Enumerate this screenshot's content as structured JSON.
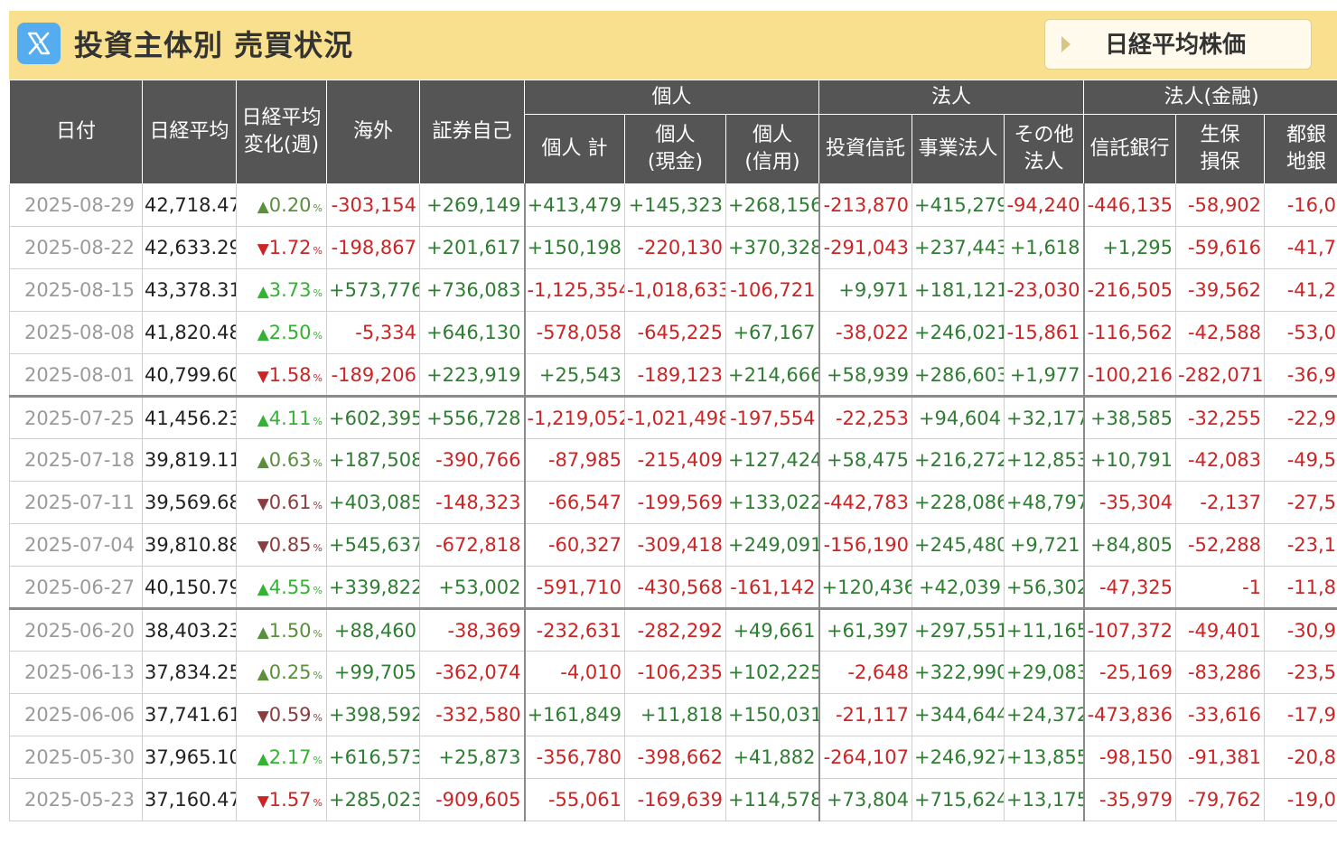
{
  "header": {
    "title": "投資主体別 売買状況",
    "nikkei_button": "日経平均株価",
    "background": "#f9e08f"
  },
  "columns": {
    "date": "日付",
    "nikkei": "日経平均",
    "change_line1": "日経平均",
    "change_line2": "変化(週)",
    "foreign": "海外",
    "proprietary": "証券自己",
    "group_individual": "個人",
    "group_corporate": "法人",
    "group_financial": "法人(金融)",
    "ind_total": "個人 計",
    "ind_cash_l1": "個人",
    "ind_cash_l2": "(現金)",
    "ind_margin_l1": "個人",
    "ind_margin_l2": "(信用)",
    "inv_trust": "投資信託",
    "business": "事業法人",
    "other_l1": "その他",
    "other_l2": "法人",
    "trust_bank": "信託銀行",
    "insurance_l1": "生保",
    "insurance_l2": "損保",
    "city_bank_l1": "都銀",
    "city_bank_l2": "地銀"
  },
  "colors": {
    "positive": "#2e7d32",
    "negative": "#cc2424",
    "header_bg": "#555555",
    "up_strong": "#33b233",
    "down_strong": "#cc2424"
  },
  "rows": [
    {
      "date": "2025-08-29",
      "nikkei": "42,718.47",
      "dir": "up",
      "chg": "0.20",
      "strong": false,
      "foreign": "-303,154",
      "prop": "+269,149",
      "ind_total": "+413,479",
      "ind_cash": "+145,323",
      "ind_margin": "+268,156",
      "inv_trust": "-213,870",
      "business": "+415,279",
      "other": "-94,240",
      "trust_bank": "-446,135",
      "insurance": "-58,902",
      "city_bank": "-16,0"
    },
    {
      "date": "2025-08-22",
      "nikkei": "42,633.29",
      "dir": "down",
      "chg": "1.72",
      "strong": true,
      "foreign": "-198,867",
      "prop": "+201,617",
      "ind_total": "+150,198",
      "ind_cash": "-220,130",
      "ind_margin": "+370,328",
      "inv_trust": "-291,043",
      "business": "+237,443",
      "other": "+1,618",
      "trust_bank": "+1,295",
      "insurance": "-59,616",
      "city_bank": "-41,7"
    },
    {
      "date": "2025-08-15",
      "nikkei": "43,378.31",
      "dir": "up",
      "chg": "3.73",
      "strong": true,
      "foreign": "+573,776",
      "prop": "+736,083",
      "ind_total": "-1,125,354",
      "ind_cash": "-1,018,633",
      "ind_margin": "-106,721",
      "inv_trust": "+9,971",
      "business": "+181,121",
      "other": "-23,030",
      "trust_bank": "-216,505",
      "insurance": "-39,562",
      "city_bank": "-41,2"
    },
    {
      "date": "2025-08-08",
      "nikkei": "41,820.48",
      "dir": "up",
      "chg": "2.50",
      "strong": true,
      "foreign": "-5,334",
      "prop": "+646,130",
      "ind_total": "-578,058",
      "ind_cash": "-645,225",
      "ind_margin": "+67,167",
      "inv_trust": "-38,022",
      "business": "+246,021",
      "other": "-15,861",
      "trust_bank": "-116,562",
      "insurance": "-42,588",
      "city_bank": "-53,0"
    },
    {
      "date": "2025-08-01",
      "nikkei": "40,799.60",
      "dir": "down",
      "chg": "1.58",
      "strong": true,
      "foreign": "-189,206",
      "prop": "+223,919",
      "ind_total": "+25,543",
      "ind_cash": "-189,123",
      "ind_margin": "+214,666",
      "inv_trust": "+58,939",
      "business": "+286,603",
      "other": "+1,977",
      "trust_bank": "-100,216",
      "insurance": "-282,071",
      "city_bank": "-36,9"
    },
    {
      "date": "2025-07-25",
      "nikkei": "41,456.23",
      "dir": "up",
      "chg": "4.11",
      "strong": true,
      "foreign": "+602,395",
      "prop": "+556,728",
      "ind_total": "-1,219,052",
      "ind_cash": "-1,021,498",
      "ind_margin": "-197,554",
      "inv_trust": "-22,253",
      "business": "+94,604",
      "other": "+32,177",
      "trust_bank": "+38,585",
      "insurance": "-32,255",
      "city_bank": "-22,9"
    },
    {
      "date": "2025-07-18",
      "nikkei": "39,819.11",
      "dir": "up",
      "chg": "0.63",
      "strong": false,
      "foreign": "+187,508",
      "prop": "-390,766",
      "ind_total": "-87,985",
      "ind_cash": "-215,409",
      "ind_margin": "+127,424",
      "inv_trust": "+58,475",
      "business": "+216,272",
      "other": "+12,853",
      "trust_bank": "+10,791",
      "insurance": "-42,083",
      "city_bank": "-49,5"
    },
    {
      "date": "2025-07-11",
      "nikkei": "39,569.68",
      "dir": "down",
      "chg": "0.61",
      "strong": false,
      "foreign": "+403,085",
      "prop": "-148,323",
      "ind_total": "-66,547",
      "ind_cash": "-199,569",
      "ind_margin": "+133,022",
      "inv_trust": "-442,783",
      "business": "+228,086",
      "other": "+48,797",
      "trust_bank": "-35,304",
      "insurance": "-2,137",
      "city_bank": "-27,5"
    },
    {
      "date": "2025-07-04",
      "nikkei": "39,810.88",
      "dir": "down",
      "chg": "0.85",
      "strong": false,
      "foreign": "+545,637",
      "prop": "-672,818",
      "ind_total": "-60,327",
      "ind_cash": "-309,418",
      "ind_margin": "+249,091",
      "inv_trust": "-156,190",
      "business": "+245,480",
      "other": "+9,721",
      "trust_bank": "+84,805",
      "insurance": "-52,288",
      "city_bank": "-23,1"
    },
    {
      "date": "2025-06-27",
      "nikkei": "40,150.79",
      "dir": "up",
      "chg": "4.55",
      "strong": true,
      "foreign": "+339,822",
      "prop": "+53,002",
      "ind_total": "-591,710",
      "ind_cash": "-430,568",
      "ind_margin": "-161,142",
      "inv_trust": "+120,436",
      "business": "+42,039",
      "other": "+56,302",
      "trust_bank": "-47,325",
      "insurance": "-1",
      "city_bank": "-11,8"
    },
    {
      "date": "2025-06-20",
      "nikkei": "38,403.23",
      "dir": "up",
      "chg": "1.50",
      "strong": false,
      "foreign": "+88,460",
      "prop": "-38,369",
      "ind_total": "-232,631",
      "ind_cash": "-282,292",
      "ind_margin": "+49,661",
      "inv_trust": "+61,397",
      "business": "+297,551",
      "other": "+11,165",
      "trust_bank": "-107,372",
      "insurance": "-49,401",
      "city_bank": "-30,9"
    },
    {
      "date": "2025-06-13",
      "nikkei": "37,834.25",
      "dir": "up",
      "chg": "0.25",
      "strong": false,
      "foreign": "+99,705",
      "prop": "-362,074",
      "ind_total": "-4,010",
      "ind_cash": "-106,235",
      "ind_margin": "+102,225",
      "inv_trust": "-2,648",
      "business": "+322,990",
      "other": "+29,083",
      "trust_bank": "-25,169",
      "insurance": "-83,286",
      "city_bank": "-23,5"
    },
    {
      "date": "2025-06-06",
      "nikkei": "37,741.61",
      "dir": "down",
      "chg": "0.59",
      "strong": false,
      "foreign": "+398,592",
      "prop": "-332,580",
      "ind_total": "+161,849",
      "ind_cash": "+11,818",
      "ind_margin": "+150,031",
      "inv_trust": "-21,117",
      "business": "+344,644",
      "other": "+24,372",
      "trust_bank": "-473,836",
      "insurance": "-33,616",
      "city_bank": "-17,9"
    },
    {
      "date": "2025-05-30",
      "nikkei": "37,965.10",
      "dir": "up",
      "chg": "2.17",
      "strong": true,
      "foreign": "+616,573",
      "prop": "+25,873",
      "ind_total": "-356,780",
      "ind_cash": "-398,662",
      "ind_margin": "+41,882",
      "inv_trust": "-264,107",
      "business": "+246,927",
      "other": "+13,855",
      "trust_bank": "-98,150",
      "insurance": "-91,381",
      "city_bank": "-20,8"
    },
    {
      "date": "2025-05-23",
      "nikkei": "37,160.47",
      "dir": "down",
      "chg": "1.57",
      "strong": true,
      "foreign": "+285,023",
      "prop": "-909,605",
      "ind_total": "-55,061",
      "ind_cash": "-169,639",
      "ind_margin": "+114,578",
      "inv_trust": "+73,804",
      "business": "+715,624",
      "other": "+13,175",
      "trust_bank": "-35,979",
      "insurance": "-79,762",
      "city_bank": "-19,0"
    }
  ],
  "week_breaks": [
    "2025-07-25",
    "2025-06-20"
  ],
  "pct_unit": "%",
  "arrow_up": "▲",
  "arrow_down": "▼"
}
